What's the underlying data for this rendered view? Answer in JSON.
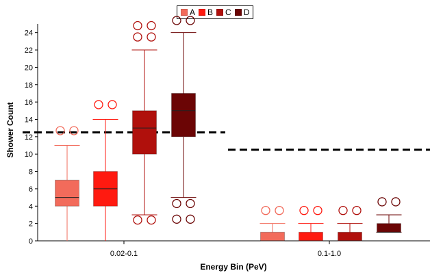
{
  "chart_data": {
    "type": "box",
    "title": "",
    "xlabel": "Energy Bin (PeV)",
    "ylabel": "Shower Count",
    "ylim": [
      0,
      25
    ],
    "yticks": [
      0,
      2,
      4,
      6,
      8,
      10,
      12,
      14,
      16,
      18,
      20,
      22,
      24
    ],
    "categories": [
      "0.02-0.1",
      "0.1-1.0"
    ],
    "legend_position": "top-center",
    "series": [
      {
        "name": "A",
        "color": "#f26b5b",
        "boxes": [
          {
            "category": "0.02-0.1",
            "whisker_low": 0,
            "q1": 4,
            "median": 5,
            "q3": 7,
            "whisker_high": 11,
            "outliers": [
              12.7,
              12.7
            ]
          },
          {
            "category": "0.1-1.0",
            "whisker_low": 0,
            "q1": 0,
            "median": 0,
            "q3": 1,
            "whisker_high": 2,
            "outliers": [
              3.5,
              3.5
            ]
          }
        ]
      },
      {
        "name": "B",
        "color": "#ff1a10",
        "boxes": [
          {
            "category": "0.02-0.1",
            "whisker_low": 0,
            "q1": 4,
            "median": 6,
            "q3": 8,
            "whisker_high": 14,
            "outliers": [
              15.7,
              15.7
            ]
          },
          {
            "category": "0.1-1.0",
            "whisker_low": 0,
            "q1": 0,
            "median": 0,
            "q3": 1,
            "whisker_high": 2,
            "outliers": [
              3.5,
              3.5
            ]
          }
        ]
      },
      {
        "name": "C",
        "color": "#b0100c",
        "boxes": [
          {
            "category": "0.02-0.1",
            "whisker_low": 3,
            "q1": 10,
            "median": 13,
            "q3": 15,
            "whisker_high": 22,
            "outliers": [
              2.4,
              2.4,
              23.5,
              23.5,
              24.8,
              24.8
            ]
          },
          {
            "category": "0.1-1.0",
            "whisker_low": 0,
            "q1": 0,
            "median": 0,
            "q3": 1,
            "whisker_high": 2,
            "outliers": [
              3.5,
              3.5
            ]
          }
        ]
      },
      {
        "name": "D",
        "color": "#6b0505",
        "boxes": [
          {
            "category": "0.02-0.1",
            "whisker_low": 5,
            "q1": 12,
            "median": 15,
            "q3": 17,
            "whisker_high": 24,
            "outliers": [
              2.5,
              2.5,
              4.3,
              4.3,
              25.4,
              25.4
            ]
          },
          {
            "category": "0.1-1.0",
            "whisker_low": 1,
            "q1": 1,
            "median": 1,
            "q3": 2,
            "whisker_high": 3,
            "outliers": [
              4.5,
              4.5
            ]
          }
        ]
      }
    ],
    "reference_lines": [
      {
        "category": "0.02-0.1",
        "value": 12.5,
        "style": "dashed",
        "color": "#000000"
      },
      {
        "category": "0.1-1.0",
        "value": 10.5,
        "style": "dashed",
        "color": "#000000"
      }
    ]
  }
}
